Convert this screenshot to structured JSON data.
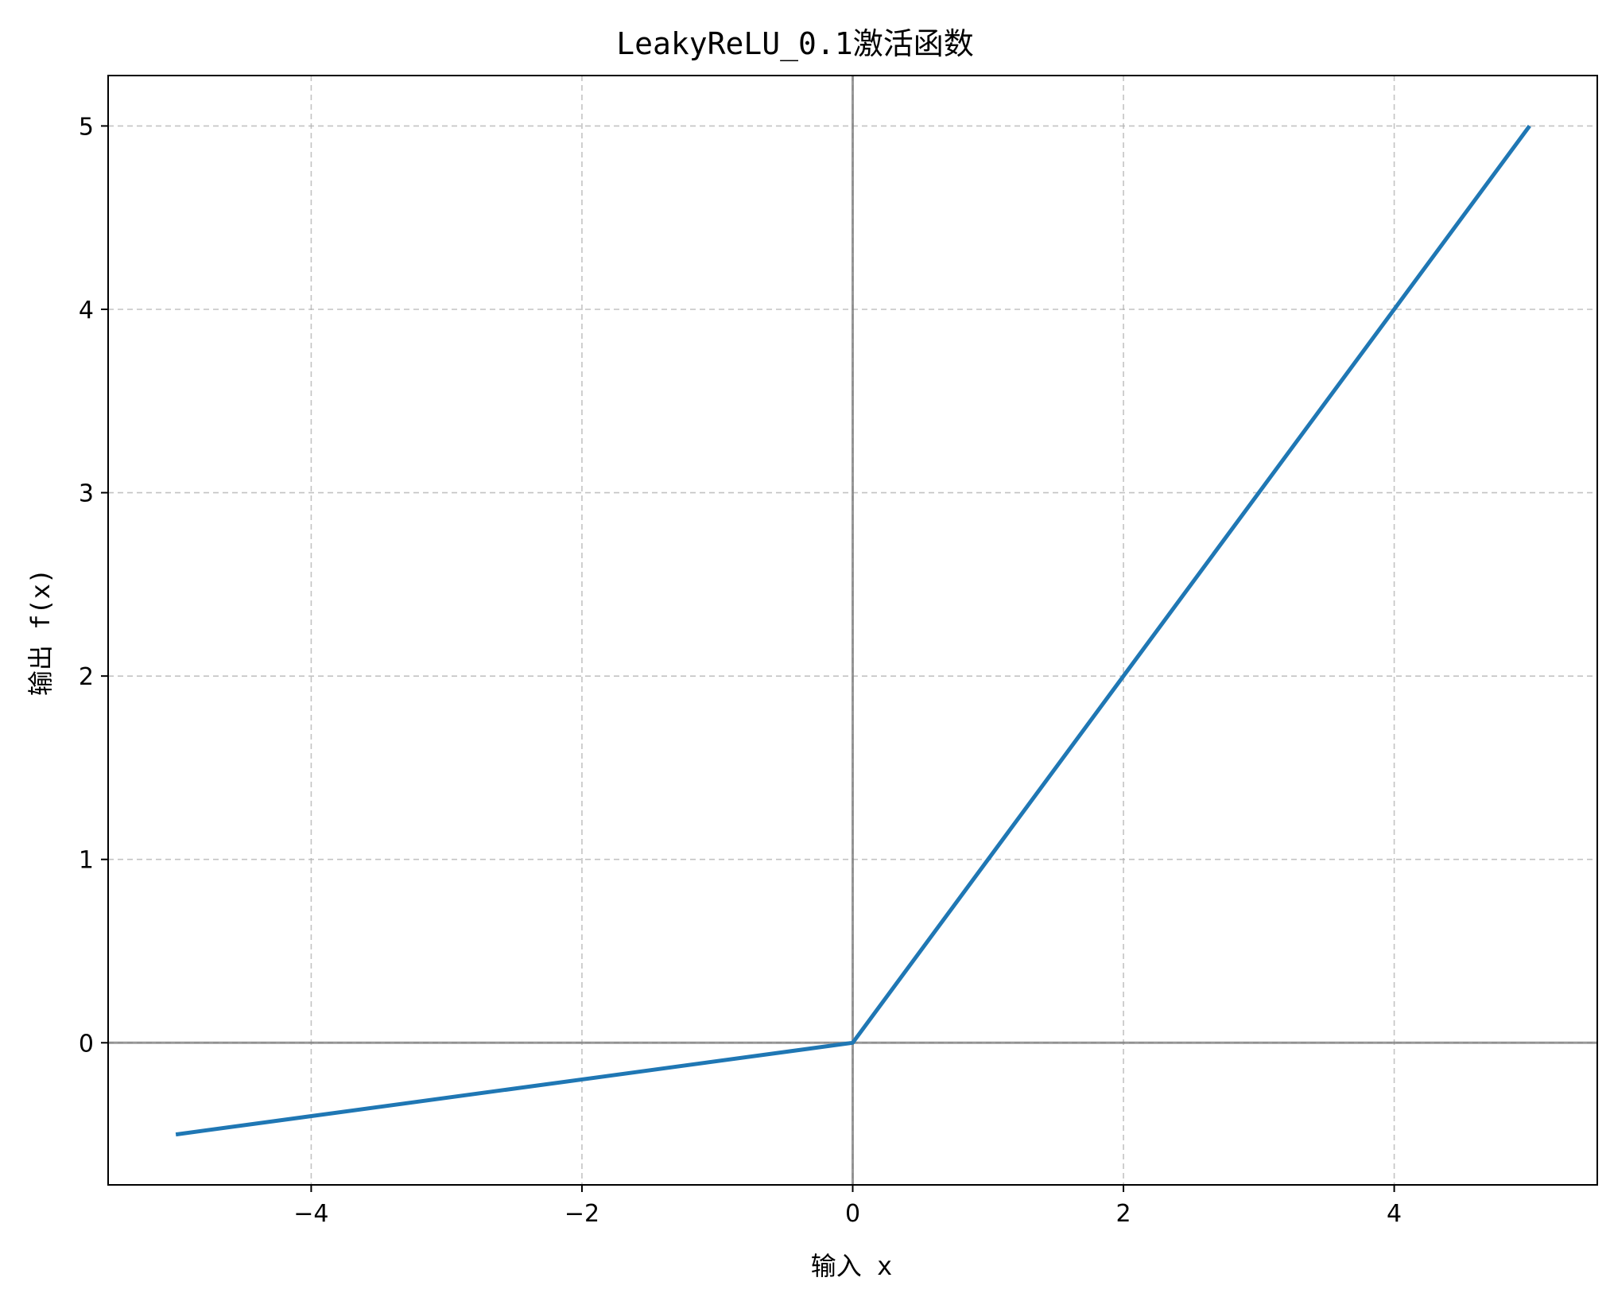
{
  "chart_data": {
    "type": "line",
    "title": "LeakyReLU_0.1激活函数",
    "xlabel": "输入 x",
    "ylabel": "输出 f(x)",
    "xlim": [
      -5.5,
      5.5
    ],
    "ylim": [
      -0.775,
      5.275
    ],
    "x_ticks": [
      -4,
      -2,
      0,
      2,
      4
    ],
    "y_ticks": [
      0,
      1,
      2,
      3,
      4,
      5
    ],
    "x_tick_labels": [
      "−4",
      "−2",
      "0",
      "2",
      "4"
    ],
    "y_tick_labels": [
      "0",
      "1",
      "2",
      "3",
      "4",
      "5"
    ],
    "grid": true,
    "reference_lines": {
      "x": 0,
      "y": 0
    },
    "series": [
      {
        "color": "#1f77b4",
        "x": [
          -5,
          0,
          5
        ],
        "y": [
          -0.5,
          0,
          5
        ]
      }
    ]
  }
}
